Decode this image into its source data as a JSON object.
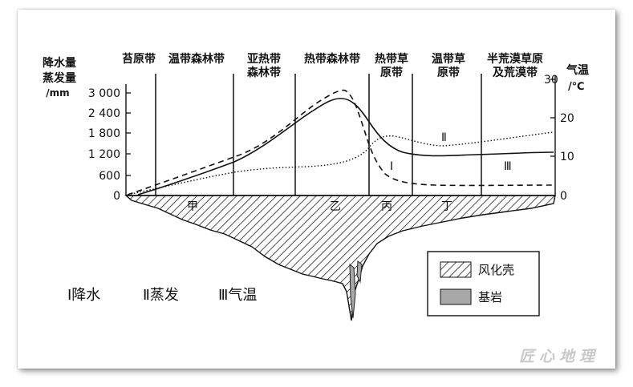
{
  "zones": [
    {
      "line1": "苔原带",
      "line2": ""
    },
    {
      "line1": "温带森林带",
      "line2": ""
    },
    {
      "line1": "亚热带",
      "line2": "森林带"
    },
    {
      "line1": "热带森林带",
      "line2": ""
    },
    {
      "line1": "热带草",
      "line2": "原带"
    },
    {
      "line1": "温带草",
      "line2": "原带"
    },
    {
      "line1": "半荒漠草原",
      "line2": "及荒漠带"
    }
  ],
  "left_axis": {
    "title_l1": "降水量",
    "title_l2": "蒸发量",
    "unit": "/mm",
    "ticks": [
      "3 000",
      "2 400",
      "1 800",
      "1 200",
      "600",
      "0"
    ]
  },
  "right_axis": {
    "title": "气温",
    "unit": "/℃",
    "ticks": [
      "30",
      "20",
      "10",
      "0"
    ]
  },
  "curve_labels": {
    "I": "Ⅰ",
    "II": "Ⅱ",
    "III": "Ⅲ"
  },
  "site_labels": [
    "甲",
    "乙",
    "丙",
    "丁"
  ],
  "legend_bottom": {
    "i": "Ⅰ降水",
    "ii": "Ⅱ蒸发",
    "iii": "Ⅲ气温"
  },
  "legend_box": {
    "weathering": "风化壳",
    "bedrock": "基岩"
  },
  "watermark": "匠心地理"
}
